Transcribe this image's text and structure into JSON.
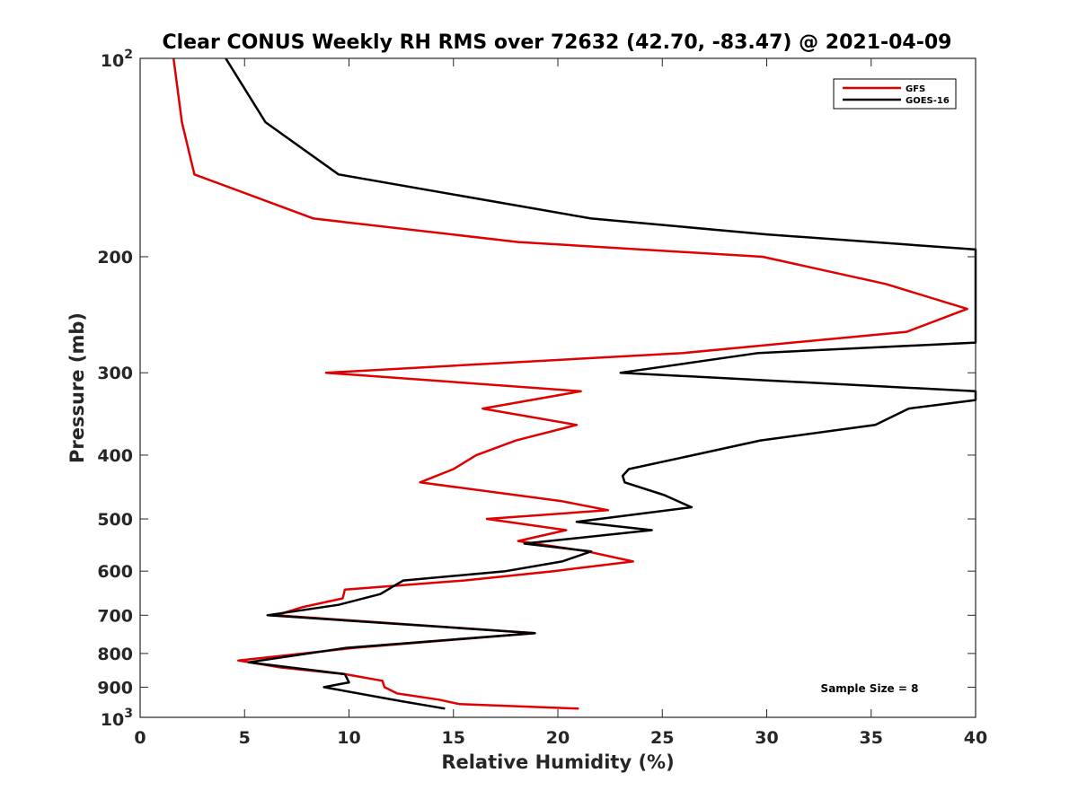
{
  "chart_data": {
    "type": "line",
    "title": "Clear CONUS Weekly RH RMS over 72632 (42.70, -83.47) @ 2021-04-09",
    "xlabel": "Relative Humidity (%)",
    "ylabel": "Pressure (mb)",
    "xlim": [
      0,
      40
    ],
    "ylim": [
      100,
      1000
    ],
    "y_scale": "log",
    "y_reversed": true,
    "x_ticks": [
      "0",
      "5",
      "10",
      "15",
      "20",
      "25",
      "30",
      "35",
      "40"
    ],
    "y_ticks": [
      {
        "value": 100,
        "base": "10",
        "exp": "2"
      },
      {
        "value": 200,
        "label": "200"
      },
      {
        "value": 300,
        "label": "300"
      },
      {
        "value": 400,
        "label": "400"
      },
      {
        "value": 500,
        "label": "500"
      },
      {
        "value": 600,
        "label": "600"
      },
      {
        "value": 700,
        "label": "700"
      },
      {
        "value": 800,
        "label": "800"
      },
      {
        "value": 900,
        "label": "900"
      },
      {
        "value": 1000,
        "base": "10",
        "exp": "3"
      }
    ],
    "legend_position": "top-right",
    "grid": false,
    "annotation": "Sample Size = 8",
    "series": [
      {
        "name": "GFS",
        "color": "#e00000",
        "points": [
          [
            1.6,
            100
          ],
          [
            2.0,
            125
          ],
          [
            2.6,
            150
          ],
          [
            8.3,
            175
          ],
          [
            18.1,
            190
          ],
          [
            29.8,
            200
          ],
          [
            35.7,
            220
          ],
          [
            39.6,
            240
          ],
          [
            36.7,
            260
          ],
          [
            26.0,
            280
          ],
          [
            8.9,
            300
          ],
          [
            21.1,
            320
          ],
          [
            16.4,
            340
          ],
          [
            20.9,
            360
          ],
          [
            18.0,
            380
          ],
          [
            16.1,
            400
          ],
          [
            15.0,
            420
          ],
          [
            13.4,
            440
          ],
          [
            20.2,
            470
          ],
          [
            22.4,
            485
          ],
          [
            16.6,
            500
          ],
          [
            20.4,
            520
          ],
          [
            18.1,
            540
          ],
          [
            21.4,
            560
          ],
          [
            23.6,
            580
          ],
          [
            19.8,
            600
          ],
          [
            15.5,
            620
          ],
          [
            9.8,
            640
          ],
          [
            9.7,
            660
          ],
          [
            7.8,
            680
          ],
          [
            6.5,
            700
          ],
          [
            18.9,
            745
          ],
          [
            10.2,
            785
          ],
          [
            4.7,
            820
          ],
          [
            6.7,
            840
          ],
          [
            9.8,
            860
          ],
          [
            11.6,
            880
          ],
          [
            11.7,
            900
          ],
          [
            12.3,
            920
          ],
          [
            14.3,
            940
          ],
          [
            15.3,
            955
          ],
          [
            21.0,
            970
          ]
        ]
      },
      {
        "name": "GOES-16",
        "color": "#000000",
        "points": [
          [
            4.1,
            100
          ],
          [
            6.0,
            125
          ],
          [
            9.5,
            150
          ],
          [
            21.6,
            175
          ],
          [
            30.0,
            185
          ],
          [
            40.0,
            195
          ],
          [
            40.0,
            270
          ],
          [
            29.6,
            280
          ],
          [
            23.0,
            300
          ],
          [
            40.0,
            320
          ],
          [
            40.0,
            330
          ],
          [
            36.8,
            340
          ],
          [
            35.2,
            360
          ],
          [
            29.7,
            380
          ],
          [
            26.5,
            400
          ],
          [
            23.4,
            420
          ],
          [
            23.1,
            430
          ],
          [
            23.2,
            440
          ],
          [
            25.1,
            460
          ],
          [
            26.4,
            480
          ],
          [
            20.9,
            505
          ],
          [
            24.5,
            520
          ],
          [
            18.4,
            545
          ],
          [
            21.6,
            560
          ],
          [
            20.2,
            580
          ],
          [
            17.5,
            600
          ],
          [
            12.6,
            620
          ],
          [
            11.5,
            650
          ],
          [
            9.5,
            675
          ],
          [
            6.1,
            700
          ],
          [
            18.9,
            745
          ],
          [
            9.8,
            785
          ],
          [
            5.2,
            825
          ],
          [
            9.8,
            860
          ],
          [
            10.0,
            885
          ],
          [
            8.8,
            900
          ],
          [
            12.5,
            945
          ],
          [
            14.6,
            970
          ]
        ]
      }
    ]
  }
}
